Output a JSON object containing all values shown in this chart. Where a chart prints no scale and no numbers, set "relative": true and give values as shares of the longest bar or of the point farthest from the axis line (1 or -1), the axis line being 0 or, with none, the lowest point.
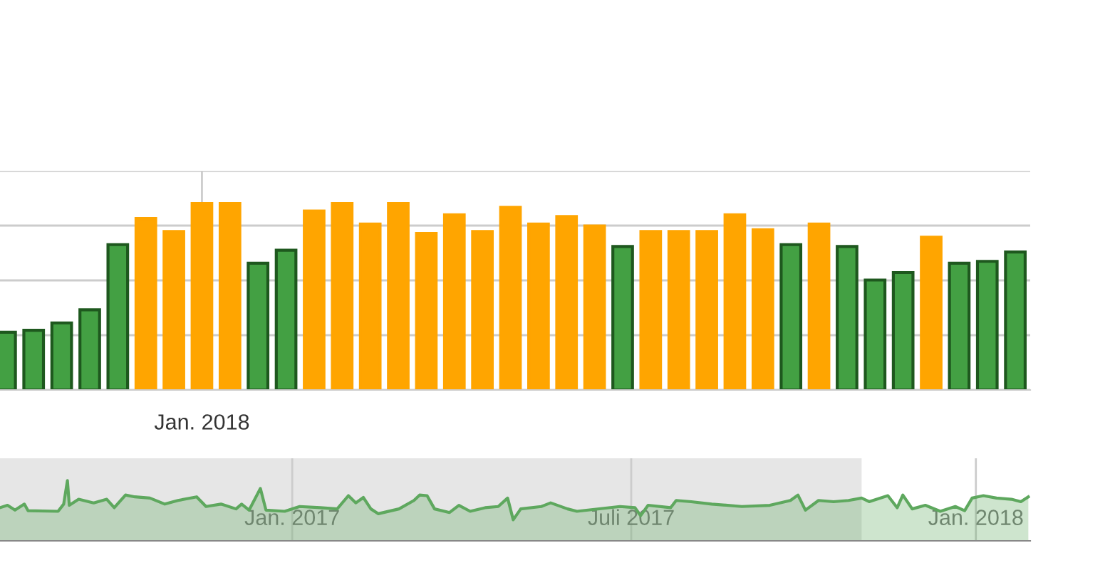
{
  "chart_data": [
    {
      "type": "bar",
      "relative": true,
      "grid": true,
      "categories": [
        null,
        null,
        null,
        null,
        null,
        null,
        null,
        "Jan. 2018",
        null,
        null,
        null,
        null,
        null,
        null,
        null,
        null,
        null,
        null,
        null,
        null,
        null,
        null,
        null,
        null,
        null,
        null,
        null,
        null,
        null,
        null,
        null,
        null,
        null,
        null,
        null,
        null,
        null
      ],
      "values": [
        0.31,
        0.32,
        0.36,
        0.43,
        0.78,
        0.92,
        0.85,
        1,
        1,
        0.68,
        0.75,
        0.96,
        1,
        0.89,
        1,
        0.84,
        0.94,
        0.85,
        0.98,
        0.89,
        0.93,
        0.88,
        0.77,
        0.85,
        0.85,
        0.85,
        0.94,
        0.86,
        0.78,
        0.89,
        0.77,
        0.59,
        0.63,
        0.82,
        0.68,
        0.69,
        0.74
      ],
      "colors": [
        "#43a043",
        "#43a043",
        "#43a043",
        "#43a043",
        "#43a043",
        "#ffa500",
        "#ffa500",
        "#ffa500",
        "#ffa500",
        "#43a043",
        "#43a043",
        "#ffa500",
        "#ffa500",
        "#ffa500",
        "#ffa500",
        "#ffa500",
        "#ffa500",
        "#ffa500",
        "#ffa500",
        "#ffa500",
        "#ffa500",
        "#ffa500",
        "#43a043",
        "#ffa500",
        "#ffa500",
        "#ffa500",
        "#ffa500",
        "#ffa500",
        "#43a043",
        "#ffa500",
        "#43a043",
        "#43a043",
        "#43a043",
        "#ffa500",
        "#43a043",
        "#43a043",
        "#43a043"
      ]
    },
    {
      "type": "area",
      "relative": true,
      "grid": "x",
      "color": "#5ea85e",
      "xlim": [
        "2016-07-29",
        "2018-01-30"
      ],
      "xticks": [
        {
          "value": "2017-01-01",
          "label": "Jan. 2017"
        },
        {
          "value": "2017-07-01",
          "label": "Juli 2017"
        },
        {
          "value": "2018-01-01",
          "label": "Jan. 2018"
        }
      ],
      "bands": [
        {
          "axis": "x",
          "from": "2016-07-29",
          "to": "2017-11-01",
          "color": "#e6e6e6"
        }
      ],
      "x": [
        "2016-07-29",
        "2016-08-02",
        "2016-08-06",
        "2016-08-11",
        "2016-08-13",
        "2016-08-29",
        "2016-09-01",
        "2016-09-03",
        "2016-09-04",
        "2016-09-09",
        "2016-09-17",
        "2016-09-24",
        "2016-09-28",
        "2016-10-04",
        "2016-10-09",
        "2016-10-17",
        "2016-10-25",
        "2016-11-01",
        "2016-11-11",
        "2016-11-16",
        "2016-11-24",
        "2016-12-02",
        "2016-12-05",
        "2016-12-09",
        "2016-12-15",
        "2016-12-18",
        "2016-12-28",
        "2017-01-05",
        "2017-01-16",
        "2017-01-25",
        "2017-01-31",
        "2017-02-04",
        "2017-02-08",
        "2017-02-12",
        "2017-02-16",
        "2017-02-27",
        "2017-03-07",
        "2017-03-10",
        "2017-03-14",
        "2017-03-18",
        "2017-03-26",
        "2017-03-31",
        "2017-04-06",
        "2017-04-14",
        "2017-04-21",
        "2017-04-26",
        "2017-04-29",
        "2017-05-03",
        "2017-05-14",
        "2017-05-19",
        "2017-05-28",
        "2017-06-02",
        "2017-06-25",
        "2017-07-03",
        "2017-07-06",
        "2017-07-10",
        "2017-07-22",
        "2017-07-25",
        "2017-08-02",
        "2017-08-13",
        "2017-08-29",
        "2017-09-13",
        "2017-09-24",
        "2017-09-28",
        "2017-10-02",
        "2017-10-09",
        "2017-10-17",
        "2017-10-25",
        "2017-11-01",
        "2017-11-05",
        "2017-11-15",
        "2017-11-20",
        "2017-11-23",
        "2017-11-28",
        "2017-12-05",
        "2017-12-13",
        "2017-12-21",
        "2017-12-26",
        "2017-12-30",
        "2018-01-05",
        "2018-01-12",
        "2018-01-20",
        "2018-01-25",
        "2018-01-29"
      ],
      "values": [
        0.55,
        0.59,
        0.51,
        0.61,
        0.5,
        0.49,
        0.61,
        1,
        0.59,
        0.69,
        0.63,
        0.69,
        0.55,
        0.76,
        0.73,
        0.71,
        0.61,
        0.67,
        0.73,
        0.57,
        0.61,
        0.53,
        0.61,
        0.51,
        0.87,
        0.51,
        0.49,
        0.57,
        0.55,
        0.53,
        0.75,
        0.63,
        0.72,
        0.53,
        0.45,
        0.53,
        0.67,
        0.76,
        0.75,
        0.53,
        0.47,
        0.59,
        0.49,
        0.55,
        0.57,
        0.71,
        0.35,
        0.53,
        0.57,
        0.63,
        0.53,
        0.49,
        0.57,
        0.55,
        0.42,
        0.59,
        0.55,
        0.67,
        0.65,
        0.61,
        0.57,
        0.59,
        0.67,
        0.76,
        0.51,
        0.67,
        0.65,
        0.67,
        0.71,
        0.65,
        0.75,
        0.55,
        0.76,
        0.53,
        0.59,
        0.49,
        0.57,
        0.5,
        0.71,
        0.75,
        0.71,
        0.69,
        0.65,
        0.73
      ]
    }
  ]
}
